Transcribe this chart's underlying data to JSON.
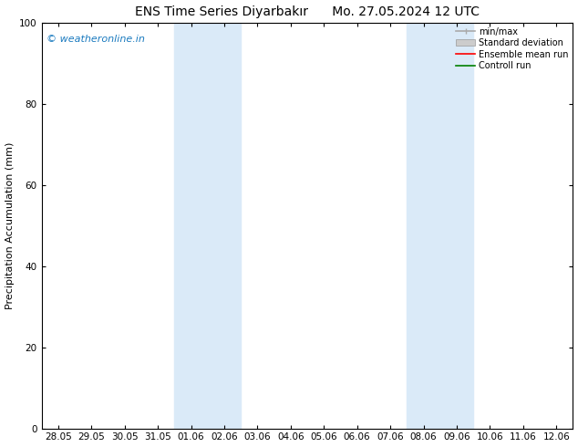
{
  "title": "ENS Time Series Diyarbakır      Mo. 27.05.2024 12 UTC",
  "ylabel": "Precipitation Accumulation (mm)",
  "ylim": [
    0,
    100
  ],
  "yticks": [
    0,
    20,
    40,
    60,
    80,
    100
  ],
  "background_color": "#ffffff",
  "plot_bg_color": "#ffffff",
  "watermark_text": "© weatheronline.in",
  "watermark_color": "#1a7abf",
  "x_tick_labels": [
    "28.05",
    "29.05",
    "30.05",
    "31.05",
    "01.06",
    "02.06",
    "03.06",
    "04.06",
    "05.06",
    "06.06",
    "07.06",
    "08.06",
    "09.06",
    "10.06",
    "11.06",
    "12.06"
  ],
  "shaded_regions": [
    {
      "xmin": 4,
      "xmax": 6,
      "color": "#daeaf8"
    },
    {
      "xmin": 11,
      "xmax": 13,
      "color": "#daeaf8"
    }
  ],
  "title_fontsize": 10,
  "label_fontsize": 8,
  "tick_fontsize": 7.5,
  "legend_fontsize": 7,
  "watermark_fontsize": 8
}
